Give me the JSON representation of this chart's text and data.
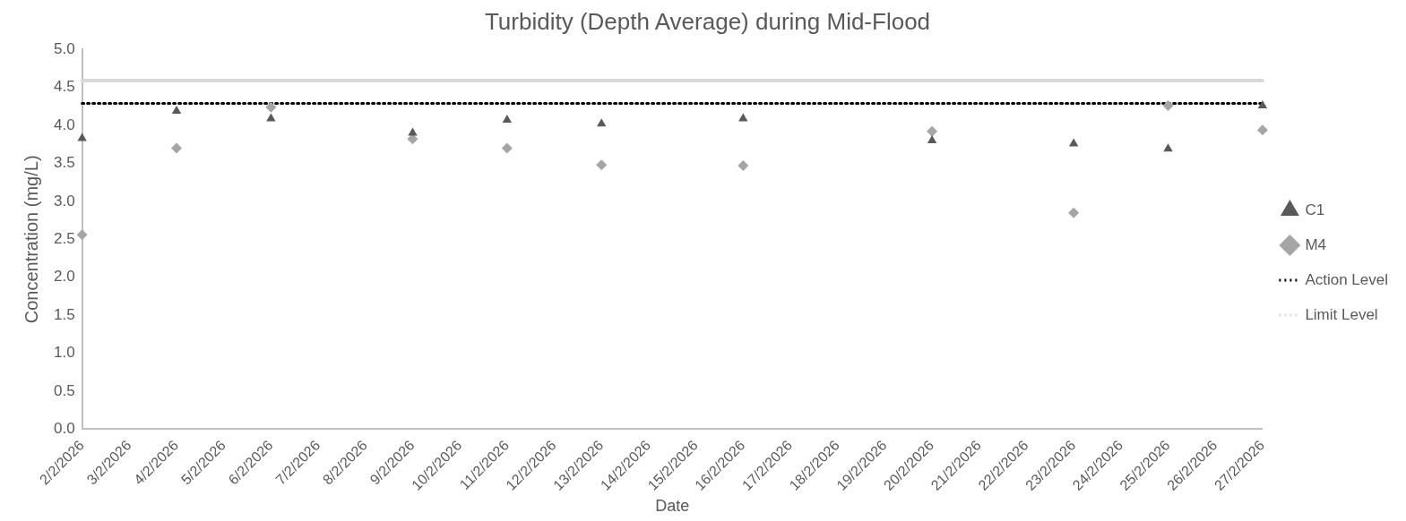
{
  "chart_data": {
    "type": "scatter",
    "title": "Turbidity (Depth Average) during Mid-Flood",
    "xlabel": "Date",
    "ylabel": "Concentration (mg/L)",
    "categories": [
      "2/2/2026",
      "3/2/2026",
      "4/2/2026",
      "5/2/2026",
      "6/2/2026",
      "7/2/2026",
      "8/2/2026",
      "9/2/2026",
      "10/2/2026",
      "11/2/2026",
      "12/2/2026",
      "13/2/2026",
      "14/2/2026",
      "15/2/2026",
      "16/2/2026",
      "17/2/2026",
      "18/2/2026",
      "19/2/2026",
      "20/2/2026",
      "21/2/2026",
      "22/2/2026",
      "23/2/2026",
      "24/2/2026",
      "25/2/2026",
      "26/2/2026",
      "27/2/2026"
    ],
    "series": [
      {
        "name": "C1",
        "color": "#595959",
        "marker": "triangle",
        "values": [
          3.83,
          null,
          4.19,
          null,
          4.09,
          null,
          null,
          3.9,
          null,
          4.07,
          null,
          4.02,
          null,
          null,
          4.09,
          null,
          null,
          null,
          3.8,
          null,
          null,
          3.76,
          null,
          3.69,
          null,
          4.26
        ]
      },
      {
        "name": "M4",
        "color": "#a5a5a5",
        "marker": "diamond",
        "values": [
          2.56,
          null,
          3.7,
          null,
          4.24,
          null,
          null,
          3.82,
          null,
          3.7,
          null,
          3.48,
          null,
          null,
          3.47,
          null,
          null,
          null,
          3.92,
          null,
          null,
          2.85,
          null,
          4.26,
          null,
          3.94
        ]
      }
    ],
    "ref_lines": [
      {
        "axis": "y",
        "value": 4.29,
        "label": "Action Level",
        "color": "#000000",
        "line_style": "dotted"
      },
      {
        "axis": "y",
        "value": 4.59,
        "label": "Limit Level",
        "color": "#d9d9d9",
        "line_style": "solid"
      }
    ],
    "ylim": [
      0,
      5
    ],
    "yticks": [
      {
        "value": 0,
        "label": "0.0"
      },
      {
        "value": 0.5,
        "label": "0.5"
      },
      {
        "value": 1,
        "label": "1.0"
      },
      {
        "value": 1.5,
        "label": "1.5"
      },
      {
        "value": 2,
        "label": "2.0"
      },
      {
        "value": 2.5,
        "label": "2.5"
      },
      {
        "value": 3,
        "label": "3.0"
      },
      {
        "value": 3.5,
        "label": "3.5"
      },
      {
        "value": 4,
        "label": "4.0"
      },
      {
        "value": 4.5,
        "label": "4.5"
      },
      {
        "value": 5,
        "label": "5.0"
      }
    ],
    "grid": false,
    "legend": "right"
  }
}
